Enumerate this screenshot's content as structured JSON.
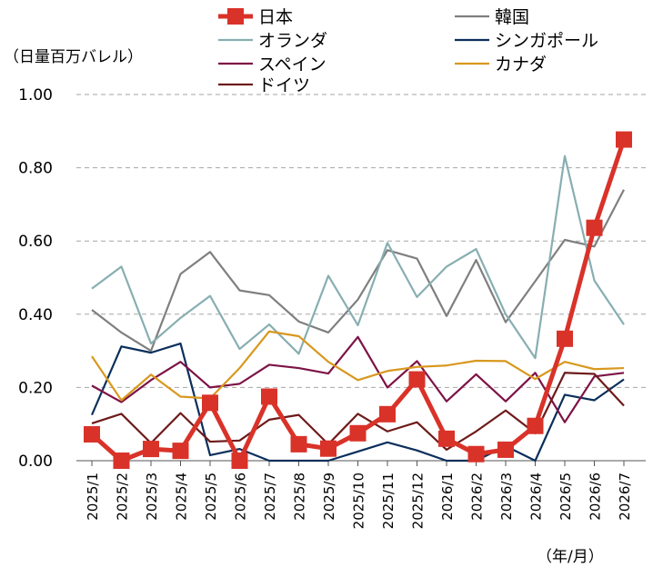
{
  "chart_data": {
    "type": "line",
    "y_unit_label": "（日量百万バレル）",
    "x_unit_label": "（年/月）",
    "ylim": [
      0,
      1.0
    ],
    "y_ticks": [
      "0.00",
      "0.20",
      "0.40",
      "0.60",
      "0.80",
      "1.00"
    ],
    "grid": "horizontal dashed",
    "legend_placement": "top",
    "categories": [
      "2025/1",
      "2025/2",
      "2025/3",
      "2025/4",
      "2025/5",
      "2025/6",
      "2025/7",
      "2025/8",
      "2025/9",
      "2025/10",
      "2025/11",
      "2025/12",
      "2026/1",
      "2026/2",
      "2026/3",
      "2026/4",
      "2026/5",
      "2026/6",
      "2026/7"
    ],
    "series": [
      {
        "name": "日本",
        "color": "#d93229",
        "marker": "square",
        "emphasis": true,
        "values": [
          0.072,
          0.0,
          0.032,
          0.027,
          0.158,
          0.0,
          0.175,
          0.045,
          0.033,
          0.075,
          0.127,
          0.222,
          0.06,
          0.018,
          0.03,
          0.095,
          0.333,
          0.636,
          0.877
        ]
      },
      {
        "name": "韓国",
        "color": "#7f7f7f",
        "values": [
          0.412,
          0.35,
          0.3,
          0.51,
          0.57,
          0.465,
          0.452,
          0.38,
          0.35,
          0.44,
          0.575,
          0.552,
          0.395,
          0.548,
          0.378,
          0.49,
          0.603,
          0.585,
          0.74
        ]
      },
      {
        "name": "オランダ",
        "color": "#88aeb1",
        "values": [
          0.47,
          0.53,
          0.32,
          0.39,
          0.45,
          0.305,
          0.372,
          0.292,
          0.505,
          0.37,
          0.595,
          0.447,
          0.53,
          0.578,
          0.4,
          0.28,
          0.832,
          0.492,
          0.372
        ]
      },
      {
        "name": "シンガポール",
        "color": "#0b2f5c",
        "values": [
          0.125,
          0.312,
          0.295,
          0.32,
          0.015,
          0.032,
          0.0,
          0.0,
          0.0,
          0.025,
          0.05,
          0.028,
          0.0,
          0.0,
          0.04,
          0.0,
          0.18,
          0.165,
          0.222
        ]
      },
      {
        "name": "スペイン",
        "color": "#7d1346",
        "values": [
          0.205,
          0.16,
          0.22,
          0.27,
          0.2,
          0.21,
          0.262,
          0.253,
          0.238,
          0.338,
          0.2,
          0.272,
          0.162,
          0.236,
          0.162,
          0.24,
          0.105,
          0.23,
          0.24
        ]
      },
      {
        "name": "カナダ",
        "color": "#d8981e",
        "values": [
          0.285,
          0.165,
          0.235,
          0.175,
          0.17,
          0.253,
          0.353,
          0.34,
          0.27,
          0.22,
          0.245,
          0.256,
          0.26,
          0.273,
          0.272,
          0.223,
          0.27,
          0.25,
          0.253
        ]
      },
      {
        "name": "ドイツ",
        "color": "#6e1a1a",
        "values": [
          0.102,
          0.128,
          0.048,
          0.13,
          0.052,
          0.055,
          0.112,
          0.125,
          0.045,
          0.128,
          0.08,
          0.105,
          0.03,
          0.08,
          0.137,
          0.075,
          0.24,
          0.237,
          0.15
        ]
      }
    ]
  }
}
